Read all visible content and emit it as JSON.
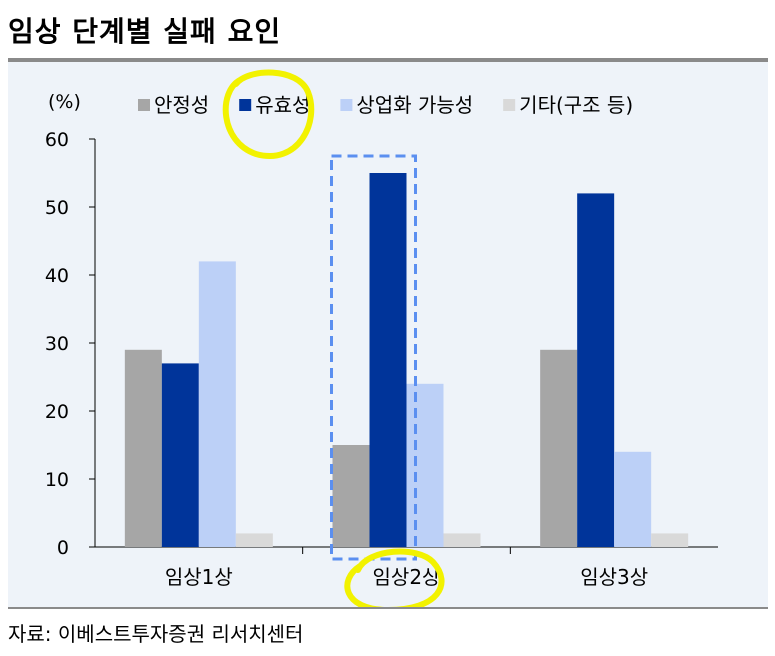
{
  "header": {
    "title": "임상 단계별 실패 요인"
  },
  "footer": {
    "source": "자료: 이베스트투자증권 리서치센터"
  },
  "chart_data": {
    "type": "bar",
    "unit_label": "(%)",
    "categories": [
      "임상1상",
      "임상2상",
      "임상3상"
    ],
    "series": [
      {
        "name": "안정성",
        "color": "#a6a6a6",
        "values": [
          29,
          15,
          29
        ]
      },
      {
        "name": "유효성",
        "color": "#00349a",
        "values": [
          27,
          55,
          52
        ]
      },
      {
        "name": "상업화 가능성",
        "color": "#bcd0f7",
        "values": [
          42,
          24,
          14
        ]
      },
      {
        "name": "기타(구조 등)",
        "color": "#d9d9d9",
        "values": [
          2,
          2,
          2
        ]
      }
    ],
    "ylim": [
      0,
      60
    ],
    "yticks": [
      0,
      10,
      20,
      30,
      40,
      50,
      60
    ],
    "legend_position": "top",
    "grid": false,
    "annotations": {
      "highlight_box_category": "임상2상",
      "highlight_box_color": "#5b8ff0",
      "marker_color": "#f2f200"
    }
  }
}
